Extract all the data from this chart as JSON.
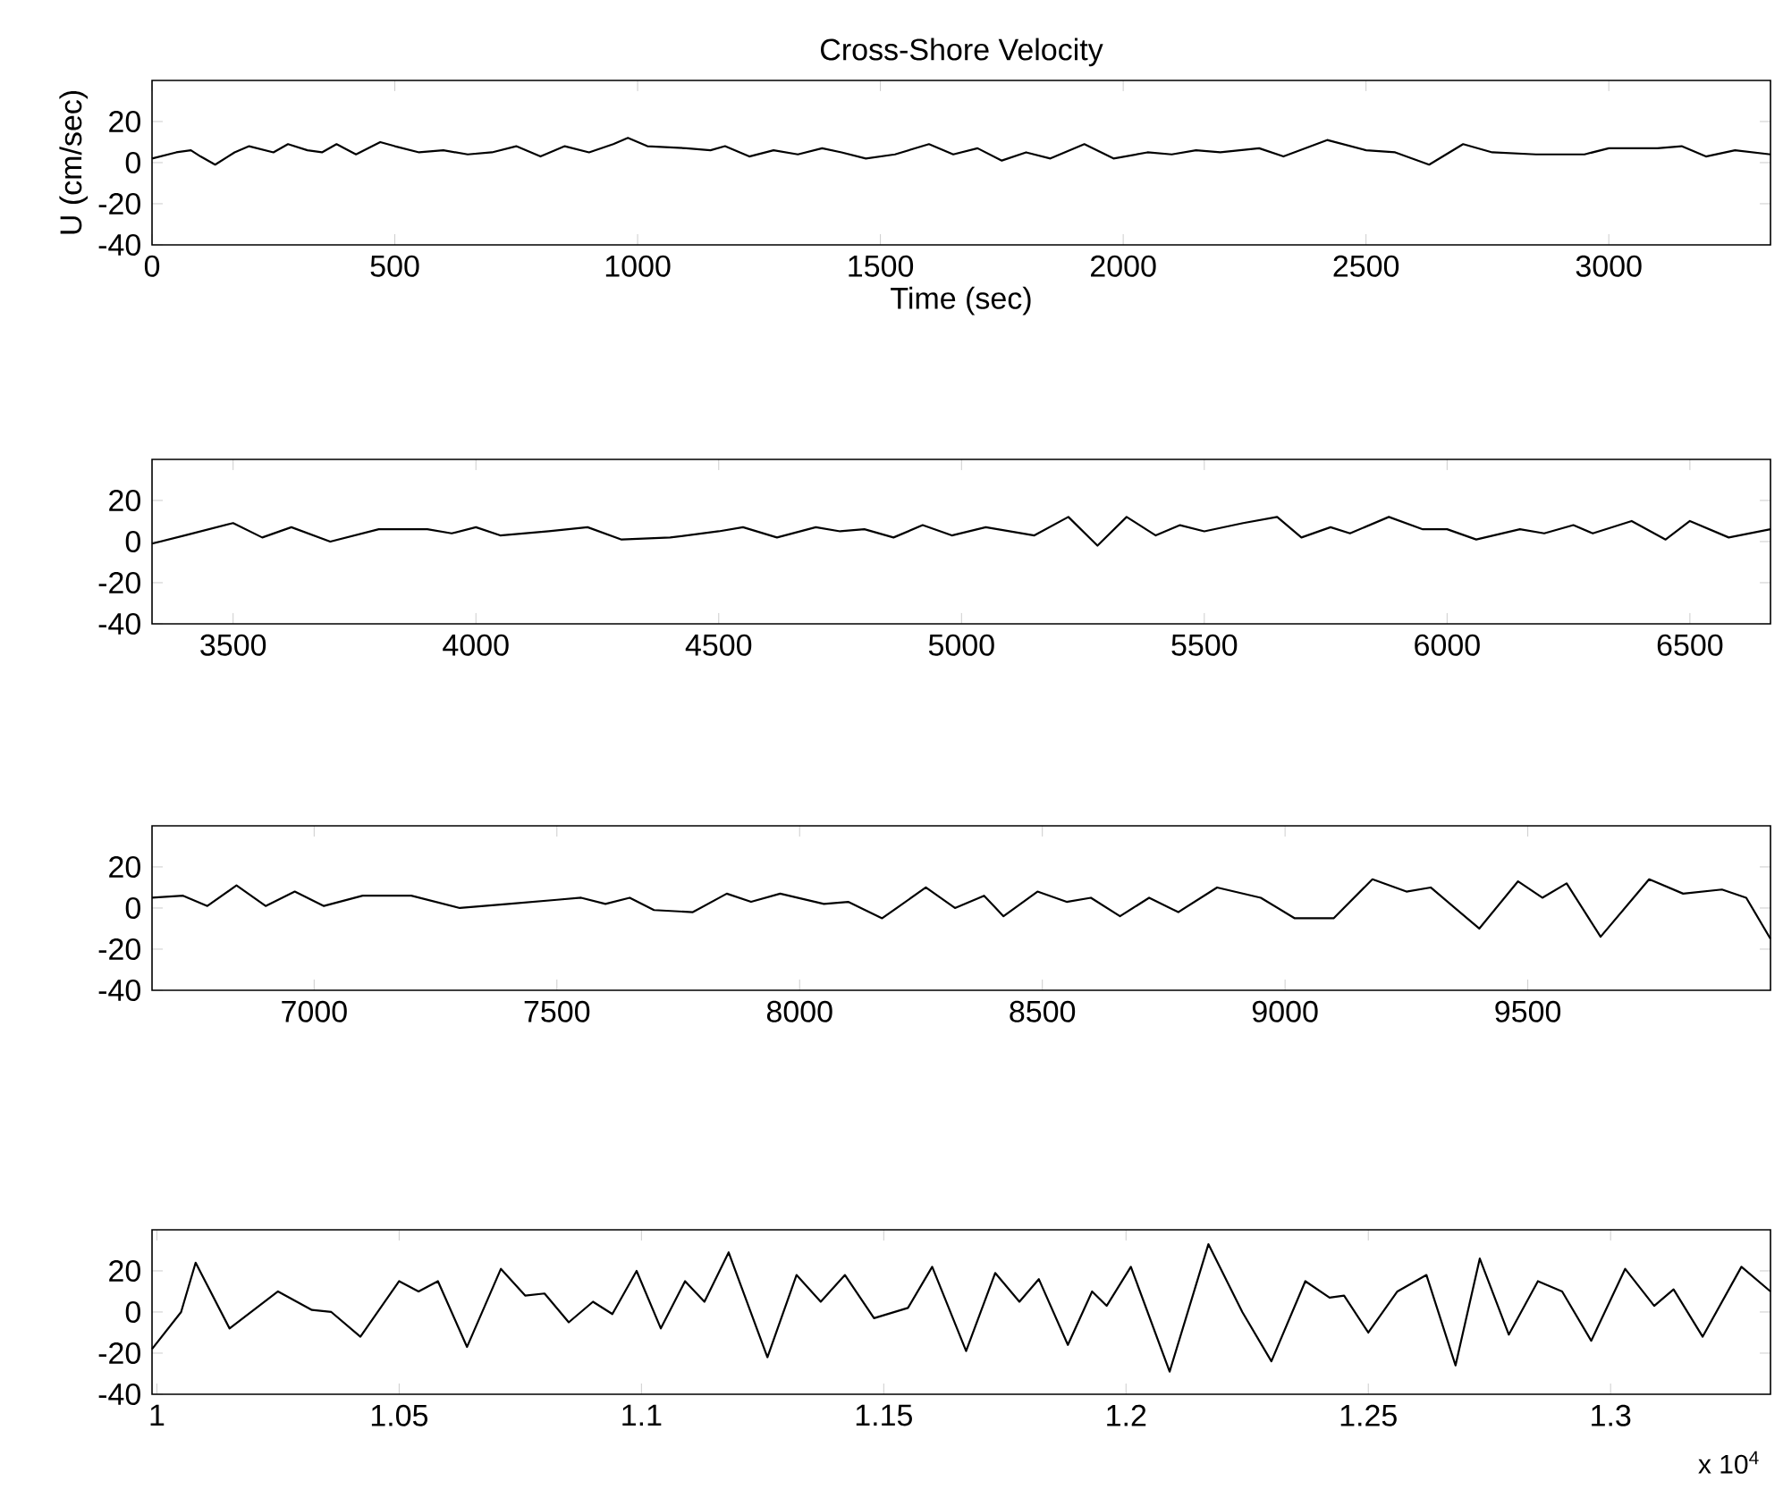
{
  "chart_data": [
    {
      "type": "line",
      "title": "Cross-Shore Velocity",
      "xlabel": "Time (sec)",
      "ylabel": "U (cm/sec)",
      "xlim": [
        0,
        3333
      ],
      "ylim": [
        -40,
        40
      ],
      "xticks": [
        0,
        500,
        1000,
        1500,
        2000,
        2500,
        3000
      ],
      "yticks": [
        -40,
        -20,
        0,
        20
      ],
      "line_style": "solid",
      "x": [
        0,
        50,
        80,
        100,
        130,
        170,
        200,
        250,
        280,
        320,
        350,
        380,
        420,
        470,
        500,
        550,
        600,
        650,
        700,
        750,
        800,
        850,
        900,
        950,
        980,
        1020,
        1100,
        1150,
        1180,
        1230,
        1280,
        1330,
        1380,
        1420,
        1470,
        1530,
        1600,
        1650,
        1700,
        1750,
        1800,
        1850,
        1920,
        1980,
        2050,
        2100,
        2150,
        2200,
        2280,
        2330,
        2420,
        2500,
        2560,
        2630,
        2700,
        2760,
        2850,
        2950,
        3000,
        3100,
        3150,
        3200,
        3260,
        3333
      ],
      "series": [
        {
          "color": "#000000",
          "values": [
            2,
            5,
            6,
            3,
            -1,
            5,
            8,
            5,
            9,
            6,
            5,
            9,
            4,
            10,
            8,
            5,
            6,
            4,
            5,
            8,
            3,
            8,
            5,
            9,
            12,
            8,
            7,
            6,
            8,
            3,
            6,
            4,
            7,
            5,
            2,
            4,
            9,
            4,
            7,
            1,
            5,
            2,
            9,
            2,
            5,
            4,
            6,
            5,
            7,
            3,
            11,
            6,
            5,
            -1,
            9,
            5,
            4,
            4,
            7,
            7,
            8,
            3,
            6,
            4
          ]
        }
      ]
    },
    {
      "type": "line",
      "xlim": [
        3333,
        6666
      ],
      "ylim": [
        -40,
        40
      ],
      "xticks": [
        3500,
        4000,
        4500,
        5000,
        5500,
        6000,
        6500
      ],
      "yticks": [
        -40,
        -20,
        0,
        20
      ],
      "line_style": "solid",
      "x": [
        3333,
        3400,
        3500,
        3560,
        3620,
        3700,
        3800,
        3900,
        3950,
        4000,
        4050,
        4150,
        4230,
        4300,
        4400,
        4500,
        4550,
        4620,
        4700,
        4750,
        4800,
        4860,
        4920,
        4980,
        5050,
        5150,
        5220,
        5280,
        5340,
        5400,
        5450,
        5500,
        5580,
        5650,
        5700,
        5760,
        5800,
        5880,
        5950,
        6000,
        6060,
        6150,
        6200,
        6260,
        6300,
        6380,
        6450,
        6500,
        6580,
        6666
      ],
      "series": [
        {
          "color": "#000000",
          "values": [
            -1,
            3,
            9,
            2,
            7,
            0,
            6,
            6,
            4,
            7,
            3,
            5,
            7,
            1,
            2,
            5,
            7,
            2,
            7,
            5,
            6,
            2,
            8,
            3,
            7,
            3,
            12,
            -2,
            12,
            3,
            8,
            5,
            9,
            12,
            2,
            7,
            4,
            12,
            6,
            6,
            1,
            6,
            4,
            8,
            4,
            10,
            1,
            10,
            2,
            6
          ]
        }
      ]
    },
    {
      "type": "line",
      "xlim": [
        6666,
        10000
      ],
      "ylim": [
        -40,
        40
      ],
      "xticks": [
        7000,
        7500,
        8000,
        8500,
        9000,
        9500
      ],
      "yticks": [
        -40,
        -20,
        0,
        20
      ],
      "line_style": "solid",
      "x": [
        6666,
        6730,
        6780,
        6840,
        6900,
        6960,
        7020,
        7100,
        7200,
        7300,
        7400,
        7500,
        7550,
        7600,
        7650,
        7700,
        7780,
        7850,
        7900,
        7960,
        8050,
        8100,
        8170,
        8260,
        8320,
        8380,
        8420,
        8490,
        8550,
        8600,
        8660,
        8720,
        8780,
        8860,
        8950,
        9020,
        9100,
        9180,
        9250,
        9300,
        9400,
        9480,
        9530,
        9580,
        9650,
        9750,
        9820,
        9900,
        9950,
        10000
      ],
      "series": [
        {
          "color": "#000000",
          "values": [
            5,
            6,
            1,
            11,
            1,
            8,
            1,
            6,
            6,
            0,
            2,
            4,
            5,
            2,
            5,
            -1,
            -2,
            7,
            3,
            7,
            2,
            3,
            -5,
            10,
            0,
            6,
            -4,
            8,
            3,
            5,
            -4,
            5,
            -2,
            10,
            5,
            -5,
            -5,
            14,
            8,
            10,
            -10,
            13,
            5,
            12,
            -14,
            14,
            7,
            9,
            5,
            -15
          ]
        }
      ]
    },
    {
      "type": "line",
      "xlim": [
        0.999,
        1.333
      ],
      "ylim": [
        -40,
        40
      ],
      "xticks": [
        1,
        1.05,
        1.1,
        1.15,
        1.2,
        1.25,
        1.3
      ],
      "yticks": [
        -40,
        -20,
        0,
        20
      ],
      "line_style": "solid",
      "annotations": [
        "x 10$^{4}$"
      ],
      "x": [
        0.999,
        1.005,
        1.008,
        1.015,
        1.025,
        1.032,
        1.036,
        1.042,
        1.05,
        1.054,
        1.058,
        1.064,
        1.071,
        1.076,
        1.08,
        1.085,
        1.09,
        1.094,
        1.099,
        1.104,
        1.109,
        1.113,
        1.118,
        1.126,
        1.132,
        1.137,
        1.142,
        1.148,
        1.155,
        1.16,
        1.167,
        1.173,
        1.178,
        1.182,
        1.188,
        1.193,
        1.196,
        1.201,
        1.209,
        1.217,
        1.224,
        1.23,
        1.237,
        1.242,
        1.245,
        1.25,
        1.256,
        1.262,
        1.268,
        1.273,
        1.279,
        1.285,
        1.29,
        1.296,
        1.303,
        1.309,
        1.313,
        1.319,
        1.327,
        1.333
      ],
      "series": [
        {
          "color": "#000000",
          "values": [
            -18,
            0,
            24,
            -8,
            10,
            1,
            0,
            -12,
            15,
            10,
            15,
            -17,
            21,
            8,
            9,
            -5,
            5,
            -1,
            20,
            -8,
            15,
            5,
            29,
            -22,
            18,
            5,
            18,
            -3,
            2,
            22,
            -19,
            19,
            5,
            16,
            -16,
            10,
            3,
            22,
            -29,
            33,
            0,
            -24,
            15,
            7,
            8,
            -10,
            10,
            18,
            -26,
            26,
            -11,
            15,
            10,
            -14,
            21,
            3,
            11,
            -12,
            22,
            10
          ]
        }
      ]
    }
  ]
}
